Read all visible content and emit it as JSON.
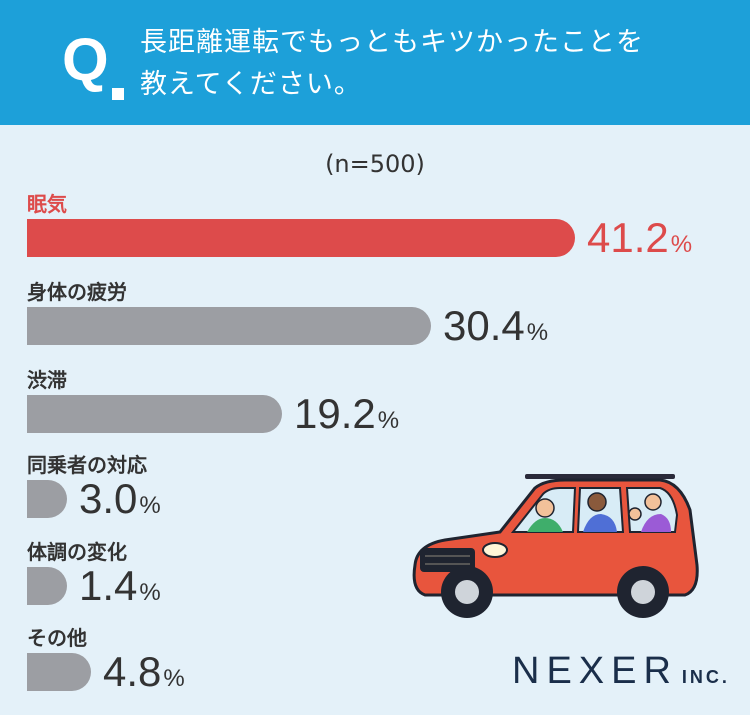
{
  "question": {
    "mark": "Q",
    "line1": "長距離運転でもっともキツかったことを",
    "line2": "教えてください。"
  },
  "sample_note": "(n=500)",
  "percent_sign": "%",
  "colors": {
    "header": "#1da0d9",
    "highlight": "#dd4b4b",
    "bar": "#9c9ea3",
    "background": "#e4f1f9"
  },
  "chart_data": {
    "type": "bar",
    "orientation": "horizontal",
    "categories": [
      "眠気",
      "身体の疲労",
      "渋滞",
      "同乗者の対応",
      "体調の変化",
      "その他"
    ],
    "values": [
      41.2,
      30.4,
      19.2,
      3.0,
      1.4,
      4.8
    ],
    "value_labels": [
      "41.2",
      "30.4",
      "19.2",
      "3.0",
      "1.4",
      "4.8"
    ],
    "highlight_index": 0
  },
  "logo": {
    "main": "NEXER",
    "suffix": "INC."
  }
}
